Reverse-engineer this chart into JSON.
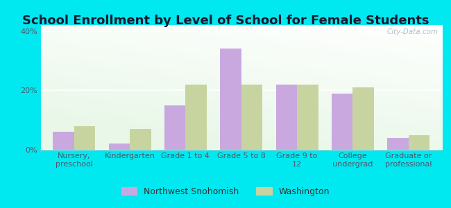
{
  "title": "School Enrollment by Level of School for Female Students",
  "categories": [
    "Nursery,\npreschool",
    "Kindergarten",
    "Grade 1 to 4",
    "Grade 5 to 8",
    "Grade 9 to\n12",
    "College\nundergrad",
    "Graduate or\nprofessional"
  ],
  "northwest_values": [
    6,
    2,
    15,
    34,
    22,
    19,
    4
  ],
  "washington_values": [
    8,
    7,
    22,
    22,
    22,
    21,
    5
  ],
  "nw_color": "#c9a8e0",
  "wa_color": "#c8d4a0",
  "background_outer": "#00e8f0",
  "ylim": [
    0,
    42
  ],
  "yticks": [
    0,
    20,
    40
  ],
  "ytick_labels": [
    "0%",
    "20%",
    "40%"
  ],
  "legend_nw": "Northwest Snohomish",
  "legend_wa": "Washington",
  "watermark": "City-Data.com",
  "title_fontsize": 13,
  "tick_fontsize": 8,
  "legend_fontsize": 9
}
